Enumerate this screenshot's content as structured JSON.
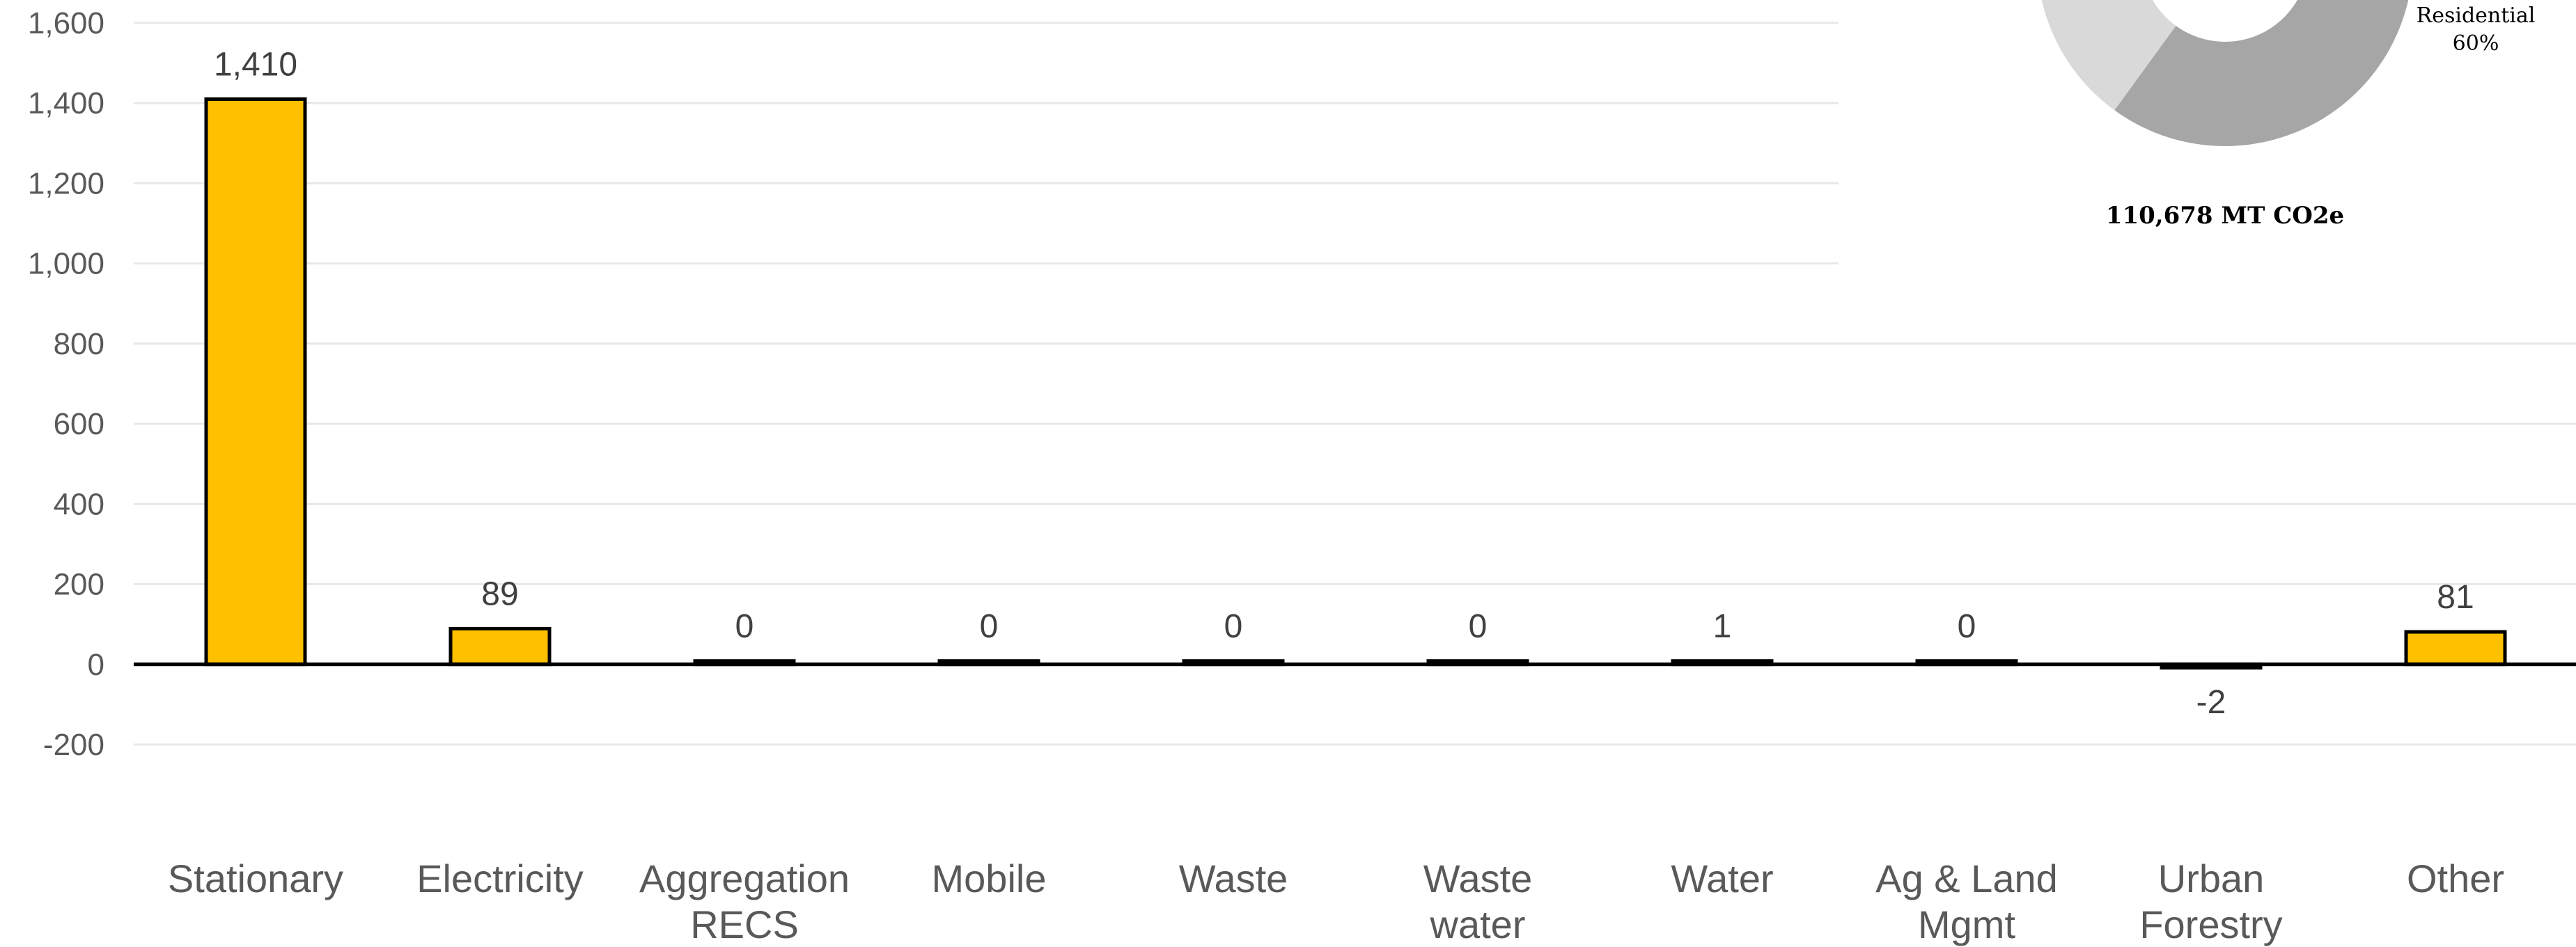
{
  "chart_data": {
    "type": "bar",
    "categories": [
      [
        "Stationary"
      ],
      [
        "Electricity"
      ],
      [
        "Aggregation",
        "RECS"
      ],
      [
        "Mobile"
      ],
      [
        "Waste"
      ],
      [
        "Waste",
        "water"
      ],
      [
        "Water"
      ],
      [
        "Ag & Land",
        "Mgmt"
      ],
      [
        "Urban",
        "Forestry"
      ],
      [
        "Other"
      ]
    ],
    "values": [
      1410,
      89,
      0,
      0,
      0,
      0,
      1,
      0,
      -2,
      81
    ],
    "data_labels": [
      "1,410",
      "89",
      "0",
      "0",
      "0",
      "0",
      "1",
      "0",
      "-2",
      "81"
    ],
    "y_ticks": [
      {
        "value": 1600,
        "label": "1,600"
      },
      {
        "value": 1400,
        "label": "1,400"
      },
      {
        "value": 1200,
        "label": "1,200"
      },
      {
        "value": 1000,
        "label": "1,000"
      },
      {
        "value": 800,
        "label": "800"
      },
      {
        "value": 600,
        "label": "600"
      },
      {
        "value": 400,
        "label": "400"
      },
      {
        "value": 200,
        "label": "200"
      },
      {
        "value": 0,
        "label": "0"
      },
      {
        "value": -200,
        "label": "-200"
      }
    ],
    "ylim": [
      -200,
      1600
    ],
    "grid": true,
    "bar_color": "#FFC000",
    "bar_edge_color": "#000000"
  },
  "inset_donut": {
    "slice_label_name": "Residential",
    "slice_label_pct": "60%",
    "total_label": "110,678 MT CO2e",
    "colors": [
      "#A6A6A6",
      "#D9D9D9"
    ]
  }
}
